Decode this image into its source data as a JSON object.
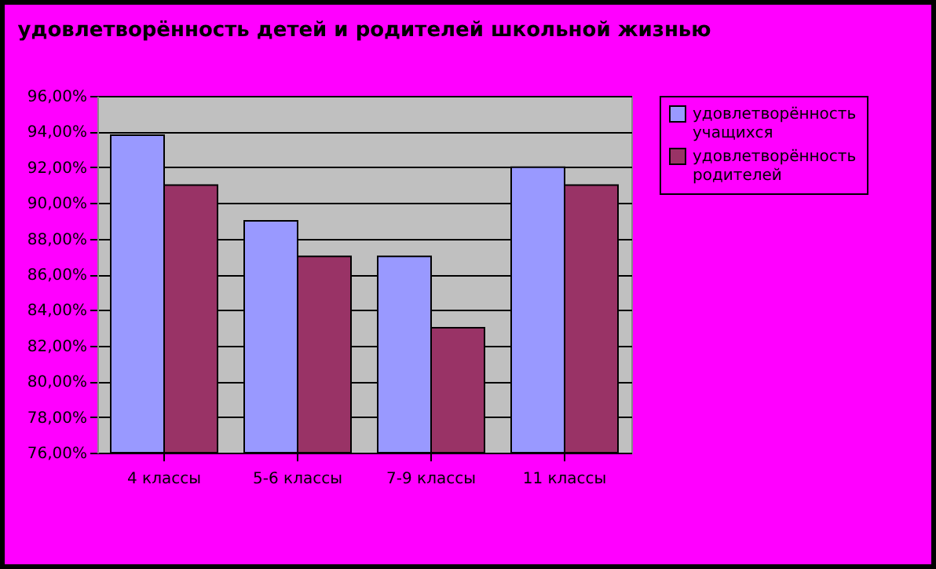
{
  "chart_data": {
    "type": "bar",
    "title": "удовлетворённость детей и родителей школьной жизнью",
    "categories": [
      "4 классы",
      "5-6 классы",
      "7-9 классы",
      "11 классы"
    ],
    "series": [
      {
        "name": "удовлетворённость учащихся",
        "color": "#9999ff",
        "values": [
          93.8,
          89,
          87,
          92
        ]
      },
      {
        "name": "удовлетворённость родителей",
        "color": "#993366",
        "values": [
          91,
          87,
          83,
          91
        ]
      }
    ],
    "ylim": [
      76,
      96
    ],
    "yticks": [
      {
        "value": 76,
        "label": "76,00%"
      },
      {
        "value": 78,
        "label": "78,00%"
      },
      {
        "value": 80,
        "label": "80,00%"
      },
      {
        "value": 82,
        "label": "82,00%"
      },
      {
        "value": 84,
        "label": "84,00%"
      },
      {
        "value": 86,
        "label": "86,00%"
      },
      {
        "value": 88,
        "label": "88,00%"
      },
      {
        "value": 90,
        "label": "90,00%"
      },
      {
        "value": 92,
        "label": "92,00%"
      },
      {
        "value": 94,
        "label": "94,00%"
      },
      {
        "value": 96,
        "label": "96,00%"
      }
    ],
    "grid": "y",
    "legend": "right"
  }
}
